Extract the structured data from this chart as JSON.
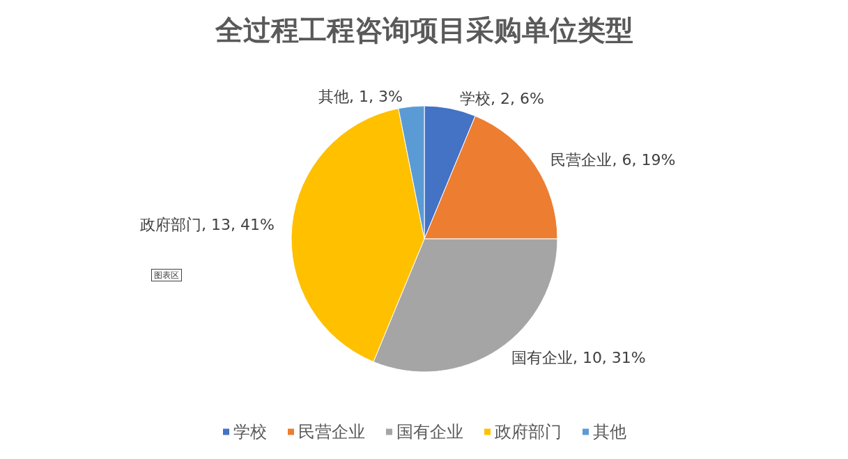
{
  "chart_data": {
    "type": "pie",
    "title": "全过程工程咨询项目采购单位类型",
    "categories": [
      "学校",
      "民营企业",
      "国有企业",
      "政府部门",
      "其他"
    ],
    "values": [
      2,
      6,
      10,
      13,
      1
    ],
    "value_labels": [
      "学校, 2, 6%",
      "民营企业, 6, 19%",
      "国有企业, 10, 31%",
      "政府部门, 13, 41%",
      "其他, 1, 3%"
    ],
    "colors": [
      "#4472c4",
      "#ed7d31",
      "#a5a5a5",
      "#ffc000",
      "#5b9bd5"
    ],
    "legend": "bottom",
    "annotations": [
      "图表区"
    ]
  }
}
